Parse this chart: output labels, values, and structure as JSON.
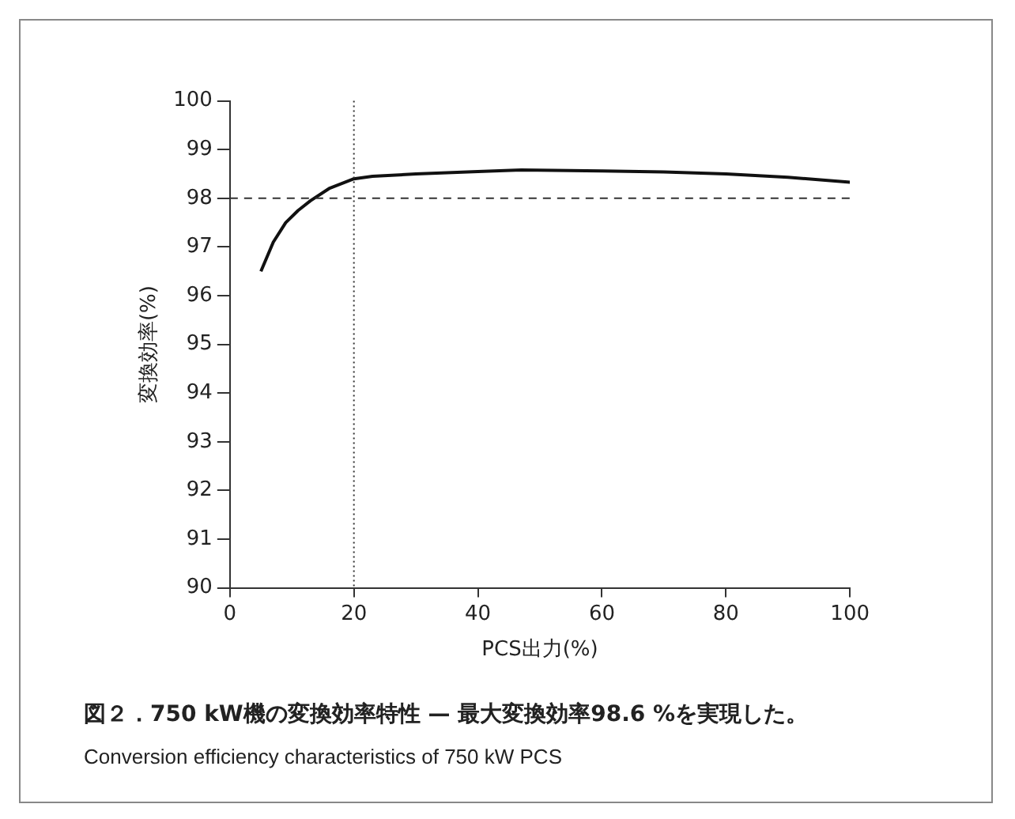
{
  "chart_data": {
    "type": "line",
    "xlabel": "PCS出力(%)",
    "ylabel": "変換効率(%)",
    "x": [
      5,
      7,
      9,
      11,
      13,
      16,
      20,
      23,
      30,
      40,
      47,
      60,
      70,
      80,
      90,
      100
    ],
    "series": [
      {
        "color": "#111111",
        "values": [
          96.5,
          97.1,
          97.5,
          97.75,
          97.95,
          98.2,
          98.4,
          98.45,
          98.5,
          98.55,
          98.58,
          98.56,
          98.54,
          98.5,
          98.43,
          98.33
        ]
      }
    ],
    "xlim": [
      0,
      100
    ],
    "xticks": [
      0,
      20,
      40,
      60,
      80,
      100
    ],
    "ylim": [
      90,
      100
    ],
    "yticks": [
      90,
      91,
      92,
      93,
      94,
      95,
      96,
      97,
      98,
      99,
      100
    ],
    "grid": false,
    "legend": false,
    "marker": "none",
    "line_style": "solid",
    "ref_lines": [
      {
        "axis": "x",
        "value": 20,
        "line_style": "dotted",
        "color": "#333333"
      },
      {
        "axis": "y",
        "value": 98,
        "line_style": "dashed",
        "color": "#333333"
      }
    ],
    "annotations": [
      "図２．750 kW機の変換効率特性 — 最大変換効率98.6 %を実現した。",
      "Conversion efficiency characteristics of 750 kW PCS"
    ]
  }
}
